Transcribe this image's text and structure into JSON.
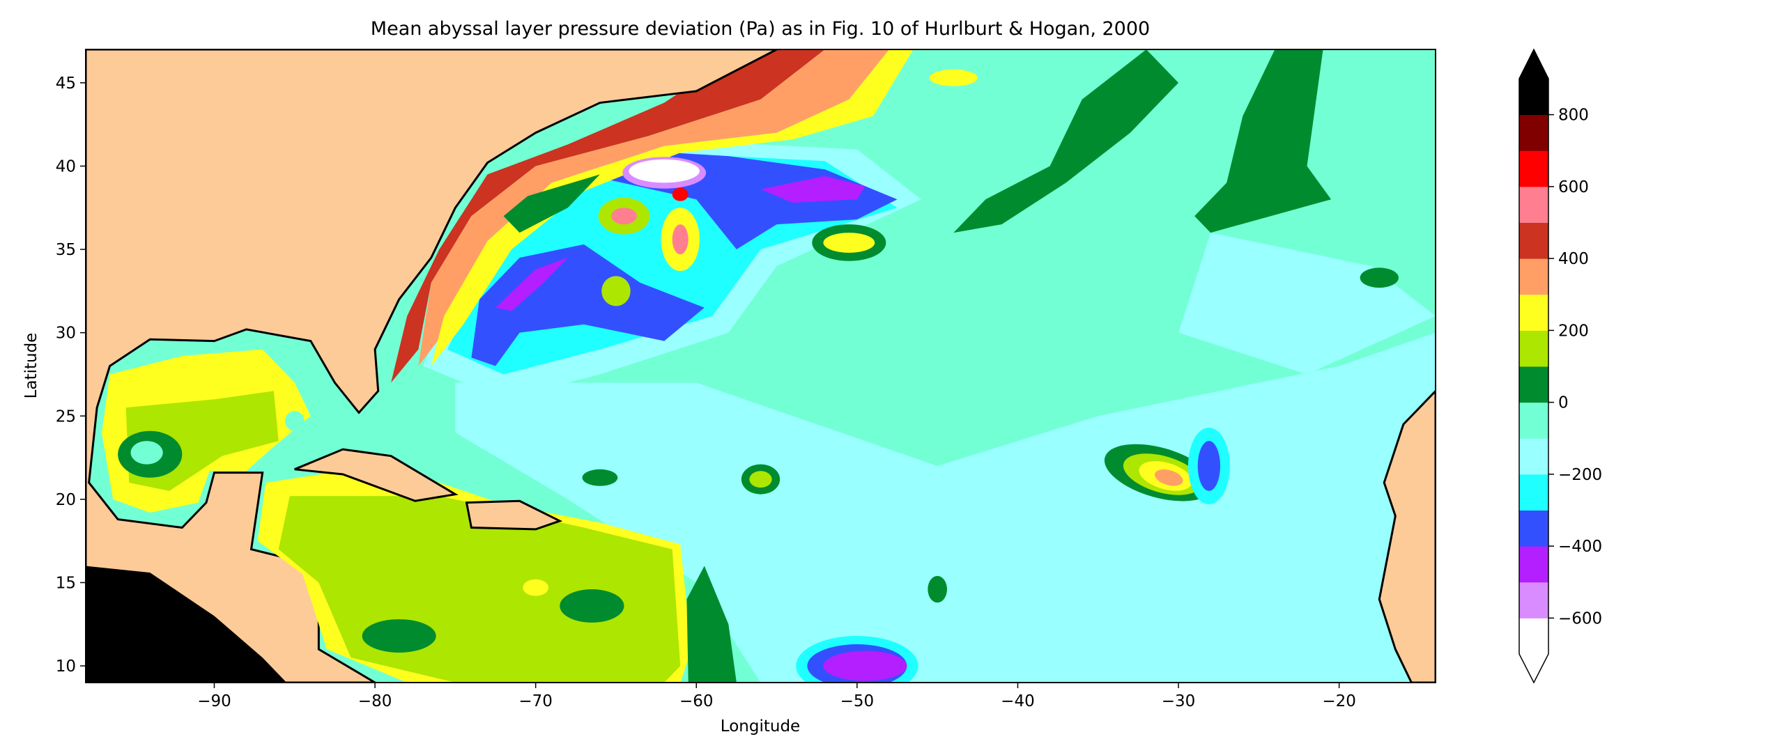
{
  "chart_data": {
    "type": "heatmap",
    "subtype": "filled-contour map",
    "title": "Mean abyssal layer pressure deviation (Pa) as in Fig. 10 of Hurlburt & Hogan, 2000",
    "xlabel": "Longitude",
    "ylabel": "Latitude",
    "xlim": [
      -98,
      -14
    ],
    "ylim": [
      9,
      47
    ],
    "xticks": [
      -90,
      -80,
      -70,
      -60,
      -50,
      -40,
      -30,
      -20
    ],
    "xtick_labels": [
      "−90",
      "−80",
      "−70",
      "−60",
      "−50",
      "−40",
      "−30",
      "−20"
    ],
    "yticks": [
      10,
      15,
      20,
      25,
      30,
      35,
      40,
      45
    ],
    "ytick_labels": [
      "10",
      "15",
      "20",
      "25",
      "30",
      "35",
      "40",
      "45"
    ],
    "colorbar": {
      "ticks": [
        -600,
        -400,
        -200,
        0,
        200,
        400,
        600,
        800
      ],
      "tick_labels": [
        "−600",
        "−400",
        "−200",
        "0",
        "200",
        "400",
        "600",
        "800"
      ],
      "range": [
        -700,
        900
      ],
      "extend": "both",
      "extend_min_color": "#ffffff",
      "extend_max_color": "#000000",
      "bands": [
        {
          "from": -700,
          "to": -600,
          "color": "#ffffff"
        },
        {
          "from": -600,
          "to": -500,
          "color": "#d98cff"
        },
        {
          "from": -500,
          "to": -400,
          "color": "#b41fff"
        },
        {
          "from": -400,
          "to": -300,
          "color": "#3350ff"
        },
        {
          "from": -300,
          "to": -200,
          "color": "#1fffff"
        },
        {
          "from": -200,
          "to": -100,
          "color": "#99ffff"
        },
        {
          "from": -100,
          "to": 0,
          "color": "#73ffd4"
        },
        {
          "from": 0,
          "to": 100,
          "color": "#008c2e"
        },
        {
          "from": 100,
          "to": 200,
          "color": "#ade600"
        },
        {
          "from": 200,
          "to": 300,
          "color": "#ffff1f"
        },
        {
          "from": 300,
          "to": 400,
          "color": "#ff9f66"
        },
        {
          "from": 400,
          "to": 500,
          "color": "#cc3320"
        },
        {
          "from": 500,
          "to": 600,
          "color": "#ff7f91"
        },
        {
          "from": 600,
          "to": 700,
          "color": "#ff0000"
        },
        {
          "from": 700,
          "to": 800,
          "color": "#800000"
        },
        {
          "from": 800,
          "to": 900,
          "color": "#000000"
        }
      ]
    },
    "land_color": "#fdcb98"
  }
}
